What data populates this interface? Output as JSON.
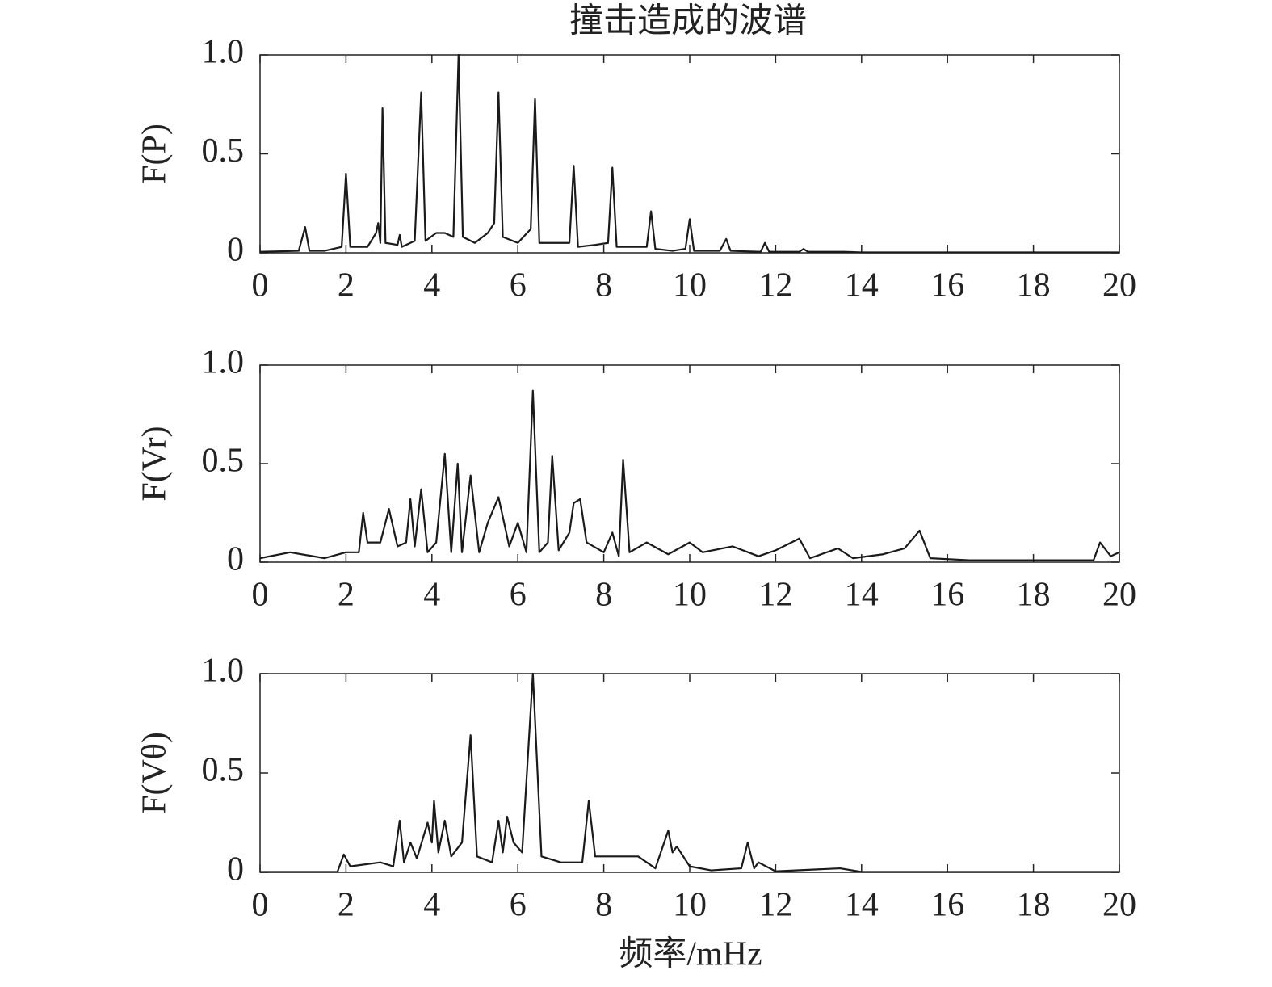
{
  "chart_data": [
    {
      "type": "line",
      "title": "撞击造成的波谱",
      "ylabel": "F(P)",
      "x": [
        0,
        0.9,
        1.05,
        1.15,
        1.5,
        1.9,
        2.0,
        2.1,
        2.5,
        2.7,
        2.75,
        2.8,
        2.85,
        2.92,
        3.2,
        3.25,
        3.3,
        3.6,
        3.75,
        3.85,
        4.1,
        4.3,
        4.5,
        4.62,
        4.72,
        5.0,
        5.3,
        5.45,
        5.55,
        5.65,
        6.0,
        6.3,
        6.4,
        6.5,
        7.0,
        7.2,
        7.3,
        7.4,
        7.8,
        8.1,
        8.2,
        8.3,
        8.7,
        9.0,
        9.1,
        9.2,
        9.6,
        9.9,
        10.0,
        10.1,
        10.7,
        10.85,
        10.95,
        11.65,
        11.75,
        11.85,
        12.55,
        12.65,
        12.75,
        13.6,
        14,
        20
      ],
      "series": [
        {
          "color": "#1a1a1a",
          "values": [
            0.005,
            0.01,
            0.13,
            0.01,
            0.01,
            0.03,
            0.4,
            0.03,
            0.03,
            0.1,
            0.15,
            0.05,
            0.73,
            0.05,
            0.04,
            0.09,
            0.03,
            0.06,
            0.81,
            0.06,
            0.1,
            0.1,
            0.08,
            1.0,
            0.08,
            0.05,
            0.1,
            0.15,
            0.81,
            0.08,
            0.05,
            0.12,
            0.78,
            0.05,
            0.05,
            0.05,
            0.44,
            0.03,
            0.04,
            0.05,
            0.43,
            0.03,
            0.03,
            0.03,
            0.21,
            0.02,
            0.01,
            0.02,
            0.17,
            0.01,
            0.01,
            0.07,
            0.01,
            0.005,
            0.05,
            0.005,
            0.005,
            0.02,
            0.005,
            0.005,
            0.002,
            0.002
          ]
        }
      ],
      "xlim": [
        0,
        20
      ],
      "ylim": [
        0,
        1
      ],
      "xticks": [
        0,
        2,
        4,
        6,
        8,
        10,
        12,
        14,
        16,
        18,
        20
      ],
      "yticks": [
        0,
        0.5,
        {
          "value": 1,
          "label": "1.0"
        }
      ]
    },
    {
      "type": "line",
      "ylabel": "F(Vr)",
      "x": [
        0,
        0.7,
        1.5,
        2,
        2.3,
        2.4,
        2.5,
        2.8,
        3.0,
        3.2,
        3.4,
        3.5,
        3.6,
        3.75,
        3.9,
        4.1,
        4.3,
        4.45,
        4.6,
        4.7,
        4.9,
        5.1,
        5.3,
        5.55,
        5.8,
        6.0,
        6.2,
        6.35,
        6.5,
        6.7,
        6.8,
        6.95,
        7.2,
        7.3,
        7.45,
        7.6,
        8.0,
        8.2,
        8.35,
        8.45,
        8.6,
        9.0,
        9.5,
        10.0,
        10.3,
        11,
        11.6,
        12,
        12.55,
        12.8,
        13.45,
        13.8,
        14.5,
        15.0,
        15.35,
        15.6,
        16.5,
        19.4,
        19.55,
        19.8,
        20
      ],
      "series": [
        {
          "color": "#1a1a1a",
          "values": [
            0.02,
            0.05,
            0.02,
            0.05,
            0.05,
            0.25,
            0.1,
            0.1,
            0.27,
            0.08,
            0.1,
            0.32,
            0.08,
            0.37,
            0.05,
            0.1,
            0.55,
            0.05,
            0.5,
            0.05,
            0.44,
            0.05,
            0.2,
            0.33,
            0.08,
            0.2,
            0.05,
            0.87,
            0.05,
            0.1,
            0.54,
            0.06,
            0.15,
            0.3,
            0.32,
            0.1,
            0.05,
            0.15,
            0.03,
            0.52,
            0.05,
            0.1,
            0.04,
            0.1,
            0.05,
            0.08,
            0.03,
            0.06,
            0.12,
            0.02,
            0.07,
            0.02,
            0.04,
            0.07,
            0.16,
            0.02,
            0.01,
            0.01,
            0.1,
            0.03,
            0.05
          ]
        }
      ],
      "xlim": [
        0,
        20
      ],
      "ylim": [
        0,
        1
      ],
      "xticks": [
        0,
        2,
        4,
        6,
        8,
        10,
        12,
        14,
        16,
        18,
        20
      ],
      "yticks": [
        0,
        0.5,
        {
          "value": 1,
          "label": "1.0"
        }
      ]
    },
    {
      "type": "line",
      "ylabel": "F(Vθ)",
      "xlabel": "频率/mHz",
      "x": [
        0,
        1.8,
        1.95,
        2.1,
        2.8,
        3.1,
        3.25,
        3.35,
        3.5,
        3.65,
        3.9,
        4.0,
        4.05,
        4.15,
        4.3,
        4.45,
        4.7,
        4.9,
        5.05,
        5.4,
        5.55,
        5.65,
        5.75,
        5.9,
        6.1,
        6.35,
        6.55,
        7.0,
        7.5,
        7.65,
        7.8,
        8.3,
        8.8,
        9.2,
        9.5,
        9.6,
        9.7,
        10.0,
        10.5,
        11.2,
        11.35,
        11.5,
        11.6,
        12,
        13.5,
        14,
        20
      ],
      "series": [
        {
          "color": "#1a1a1a",
          "values": [
            0.002,
            0.002,
            0.09,
            0.03,
            0.05,
            0.03,
            0.26,
            0.05,
            0.15,
            0.07,
            0.25,
            0.15,
            0.36,
            0.1,
            0.26,
            0.08,
            0.15,
            0.69,
            0.08,
            0.05,
            0.26,
            0.1,
            0.28,
            0.15,
            0.1,
            1.0,
            0.08,
            0.05,
            0.05,
            0.36,
            0.08,
            0.08,
            0.08,
            0.02,
            0.21,
            0.1,
            0.13,
            0.03,
            0.01,
            0.02,
            0.15,
            0.02,
            0.05,
            0.005,
            0.02,
            0.002,
            0.002
          ]
        }
      ],
      "xlim": [
        0,
        20
      ],
      "ylim": [
        0,
        1
      ],
      "xticks": [
        0,
        2,
        4,
        6,
        8,
        10,
        12,
        14,
        16,
        18,
        20
      ],
      "yticks": [
        0,
        0.5,
        {
          "value": 1,
          "label": "1.0"
        }
      ]
    }
  ]
}
